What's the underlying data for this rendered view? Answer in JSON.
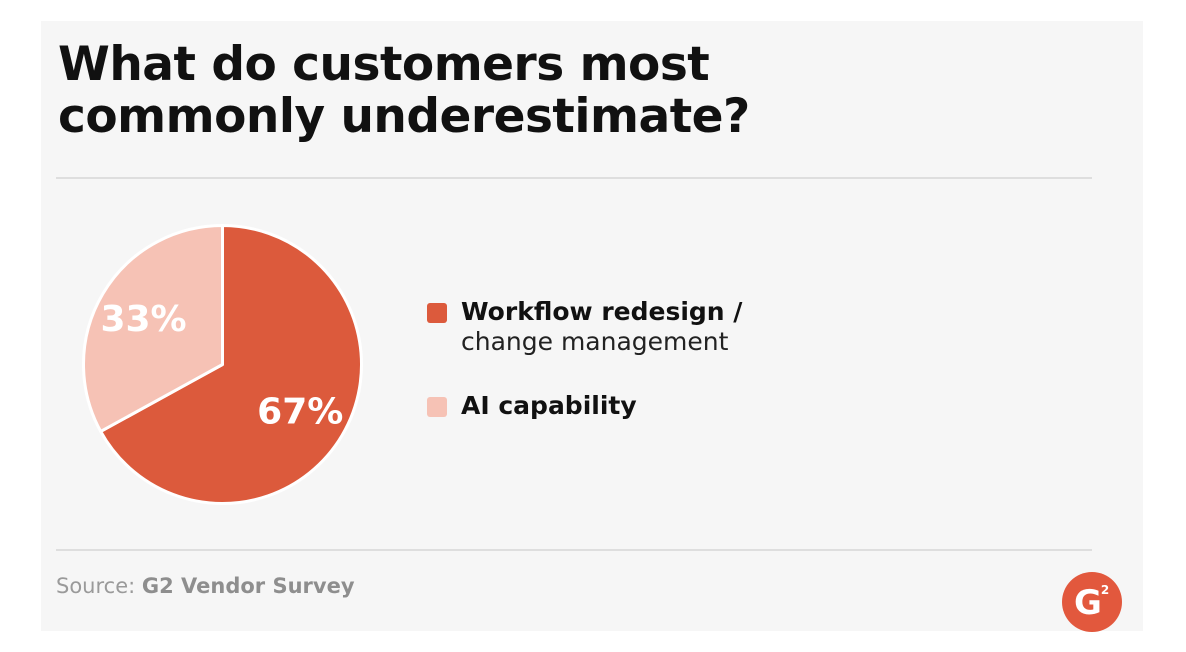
{
  "title": {
    "line1": "What do customers most",
    "line2": "commonly underestimate?"
  },
  "chart_data": {
    "type": "pie",
    "title": "What do customers most commonly underestimate?",
    "slices": [
      {
        "line1": "Workflow redesign /",
        "line2": "change management",
        "value": 67,
        "label": "67%",
        "color": "#dc5a3c",
        "label_color": "#ffffff"
      },
      {
        "line1": "AI capability",
        "line2": "",
        "value": 33,
        "label": "33%",
        "color": "#f6c2b5",
        "label_color": "#ffffff"
      }
    ],
    "legend_position": "right",
    "start_angle_deg": 0,
    "direction": "clockwise"
  },
  "source": {
    "prefix": "Source: ",
    "brand": "G2 Vendor Survey"
  },
  "logo": {
    "icon": "g2-logo-icon",
    "color": "#e2583d",
    "letter": "G",
    "superscript": "2"
  }
}
